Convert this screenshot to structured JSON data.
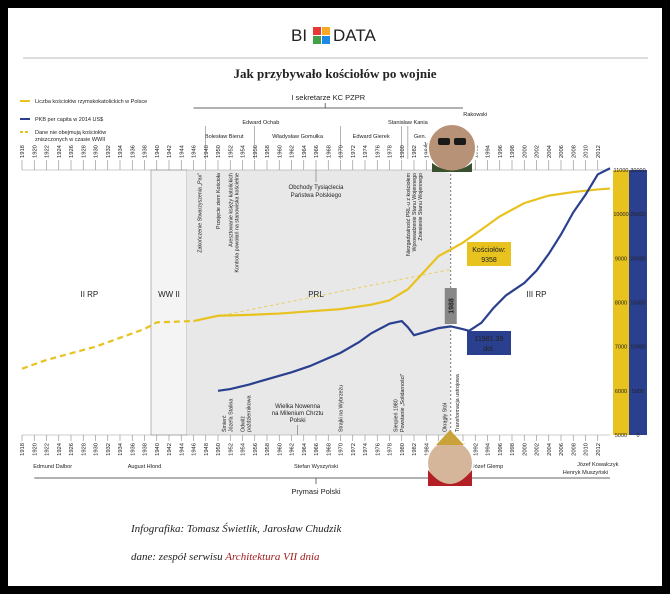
{
  "logo": {
    "text_left": "BI",
    "text_right": "DATA",
    "colors": [
      "#e53935",
      "#f9a825",
      "#43a047",
      "#1e88e5"
    ]
  },
  "chart_data": {
    "type": "line",
    "title": "Jak przybywało kościołów po wojnie",
    "x_range": [
      1918,
      2014
    ],
    "x_ticks": [
      1918,
      1920,
      1922,
      1924,
      1926,
      1928,
      1930,
      1932,
      1934,
      1936,
      1938,
      1940,
      1942,
      1944,
      1946,
      1948,
      1950,
      1952,
      1954,
      1956,
      1958,
      1960,
      1962,
      1964,
      1966,
      1968,
      1970,
      1972,
      1974,
      1976,
      1978,
      1980,
      1982,
      1984,
      1986,
      1988,
      1990,
      1992,
      1994,
      1996,
      1998,
      2000,
      2002,
      2004,
      2006,
      2008,
      2010,
      2012
    ],
    "legend": [
      {
        "label": "Liczba kościołów rzymskokatolickich w Polsce",
        "color": "#e8c21f",
        "style": "solid"
      },
      {
        "label": "PKB per capita w 2014 US$",
        "color": "#2b3f8f",
        "style": "solid"
      },
      {
        "label": "Dane nie obejmują kościołów zniszczonych w czasie WWII",
        "color": "#e8c21f",
        "style": "dashed"
      }
    ],
    "y_left": {
      "ticks": [
        5000,
        6000,
        7000,
        8000,
        9000,
        10000,
        11000
      ],
      "range": [
        5000,
        11000
      ],
      "color": "#e8c21f"
    },
    "y_right": {
      "ticks": [
        0,
        5000,
        10000,
        15000,
        20000,
        25000,
        30000
      ],
      "range": [
        0,
        30000
      ],
      "color": "#2b3f8f"
    },
    "series": [
      {
        "name": "Liczba kościołów rzymskokatolickich w Polsce",
        "axis": "left",
        "color": "#e8c21f",
        "dashed_until": 1946,
        "x": [
          1918,
          1922,
          1926,
          1930,
          1934,
          1938,
          1940,
          1946,
          1950,
          1955,
          1960,
          1965,
          1970,
          1975,
          1978,
          1981,
          1984,
          1986,
          1988,
          1990,
          1993,
          1996,
          2000,
          2004,
          2008,
          2012,
          2014
        ],
        "y": [
          6500,
          6700,
          6850,
          7000,
          7200,
          7400,
          7550,
          7580,
          7700,
          7720,
          7750,
          7800,
          7850,
          7950,
          8050,
          8300,
          8750,
          9050,
          9200,
          9358,
          9650,
          9950,
          10250,
          10420,
          10500,
          10560,
          10580
        ]
      },
      {
        "name": "PKB per capita w 2014 US$",
        "axis": "right",
        "color": "#2b3f8f",
        "x": [
          1950,
          1952,
          1955,
          1957,
          1960,
          1962,
          1965,
          1968,
          1970,
          1973,
          1975,
          1978,
          1980,
          1981,
          1982,
          1984,
          1986,
          1988,
          1990,
          1991,
          1993,
          1995,
          1997,
          2000,
          2002,
          2004,
          2006,
          2008,
          2010,
          2012,
          2014
        ],
        "y": [
          5000,
          5200,
          5700,
          6100,
          6700,
          7100,
          7800,
          8700,
          9300,
          10500,
          11500,
          12600,
          12900,
          12200,
          11300,
          11700,
          12100,
          12300,
          11981,
          11800,
          12700,
          14400,
          15800,
          17200,
          18600,
          20500,
          22700,
          25200,
          27200,
          29500,
          30200
        ]
      }
    ],
    "callouts": [
      {
        "label": "Kościołów:",
        "value": "9358",
        "color": "#e8c21f",
        "x": 1990
      },
      {
        "label": "11981.39",
        "value": "dol.",
        "color": "#2b3f8f",
        "x": 1990
      }
    ],
    "period_labels": [
      {
        "text": "II RP",
        "x": 1929
      },
      {
        "text": "WW II",
        "x": 1942
      },
      {
        "text": "PRL",
        "x": 1966
      },
      {
        "text": "III RP",
        "x": 2002
      }
    ],
    "year_marker": "1988",
    "secretaries_heading": "I sekretarze KC PZPR",
    "secretaries": [
      {
        "name": "Edward Ochab",
        "x": 1957,
        "row": 1
      },
      {
        "name": "Bolesław Bierut",
        "x": 1951,
        "row": 2
      },
      {
        "name": "Władysław Gomułka",
        "x": 1963,
        "row": 2
      },
      {
        "name": "Edward Gierek",
        "x": 1975,
        "row": 2
      },
      {
        "name": "Stanisław Kania",
        "x": 1981,
        "row": 1
      },
      {
        "name": "Gen.",
        "x": 1983,
        "row": 2
      },
      {
        "name": "Ja",
        "x": 1984,
        "row": 3
      },
      {
        "name": "Rakowski",
        "x": 1992,
        "row": 0
      }
    ],
    "events_top": [
      {
        "text": "Zakończenie Stwarzyszenia „Pax”",
        "x": 1947
      },
      {
        "text": "Przejęcie ziem Kościoła",
        "x": 1950
      },
      {
        "text": "Aresztowanie księży katolickich",
        "x": 1952
      },
      {
        "text": "Kontrola powołań na stanowiska kościelne",
        "x": 1953
      },
      {
        "text": "Niezgadzalność PRL-u z kościołem",
        "x": 1981
      },
      {
        "text": "Wprowadzenie Stanu Wojennego",
        "x": 1982
      },
      {
        "text": "Zniesienie Stanu Wojennego",
        "x": 1983
      }
    ],
    "event_note_top": {
      "line1": "Obchody Tysiąclecia",
      "line2": "Państwa Polskiego",
      "x": 1966
    },
    "events_bottom": [
      {
        "text": "Śmierć",
        "x": 1951
      },
      {
        "text": "Józefa Stalina",
        "x": 1952
      },
      {
        "text": "Odwilż",
        "x": 1954
      },
      {
        "text": "październikowa",
        "x": 1955
      },
      {
        "text": "Strajki na Wybrzeżu",
        "x": 1970
      },
      {
        "text": "Sierpień 1980",
        "x": 1979
      },
      {
        "text": "Powstanie „Solidarności”",
        "x": 1980
      },
      {
        "text": "Okrągły Stół",
        "x": 1987
      },
      {
        "text": "Transformacja ustrojowa",
        "x": 1989
      }
    ],
    "event_note_bottom": {
      "line1": "Wielka Nowenna",
      "line2": "na Milenium Chrztu",
      "line3": "Polski",
      "x": 1963
    },
    "primates_heading": "Prymasi Polski",
    "primates": [
      {
        "name": "Edmund Dalbor",
        "x": 1923
      },
      {
        "name": "August Hlond",
        "x": 1938
      },
      {
        "name": "Stefan Wyszyński",
        "x": 1966
      },
      {
        "name": "Józef Glemp",
        "x": 1994
      },
      {
        "name": "Henryk Muszyński",
        "x": 2010
      },
      {
        "name": "Józef Kowalczyk",
        "x": 2012
      }
    ]
  },
  "credits": {
    "line1": "Infografika: Tomasz Świetlik, Jarosław Chudzik",
    "line2_prefix": "dane: zespół serwisu ",
    "line2_link": "Architektura VII dnia"
  }
}
